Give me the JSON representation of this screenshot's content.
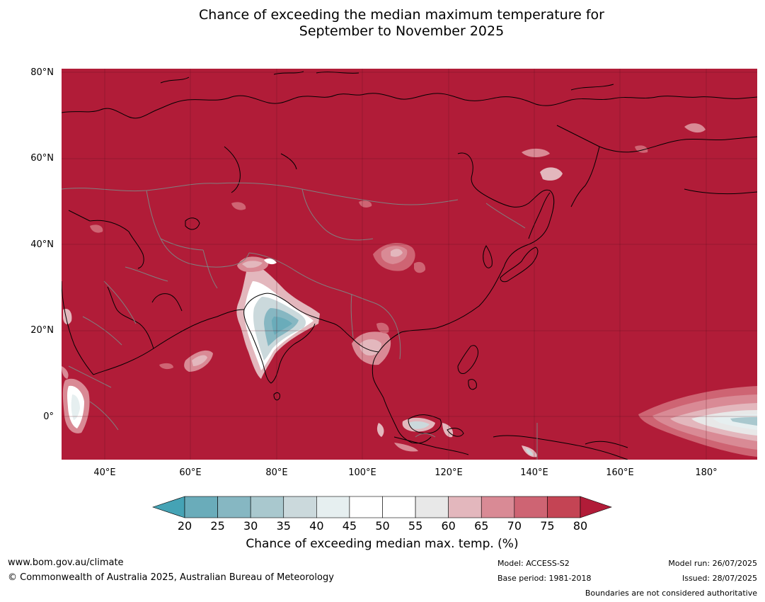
{
  "title": {
    "line1": "Chance of exceeding the median maximum temperature for",
    "line2": "September to November 2025"
  },
  "axes": {
    "lat_labels": [
      "80°N",
      "60°N",
      "40°N",
      "20°N",
      "0°"
    ],
    "lon_labels": [
      "40°E",
      "60°E",
      "80°E",
      "100°E",
      "120°E",
      "140°E",
      "160°E",
      "180°"
    ]
  },
  "colors": {
    "above": "#b11c38",
    "c75": "#c44454",
    "c70": "#ce6473",
    "c65": "#d98a95",
    "c60": "#e3b7bd",
    "c55": "#e8e8e8",
    "white": "#ffffff",
    "c40": "#e6eff0",
    "c35": "#cbd9dc",
    "c30": "#a9c8ce",
    "c25": "#86b7c2",
    "c20": "#6aacba",
    "below": "#45a3b5",
    "grid": "#5a1020",
    "border": "#808080",
    "coast": "#000000"
  },
  "colorbar": {
    "ticks": [
      "20",
      "25",
      "30",
      "35",
      "40",
      "45",
      "50",
      "55",
      "60",
      "65",
      "70",
      "75",
      "80"
    ],
    "label": "Chance of exceeding median max. temp. (%)"
  },
  "footer": {
    "url": "www.bom.gov.au/climate",
    "copyright": "© Commonwealth of Australia 2025, Australian Bureau of Meteorology",
    "model": "Model: ACCESS-S2",
    "base_period": "Base period: 1981-2018",
    "model_run": "Model run: 26/07/2025",
    "issued": "Issued: 28/07/2025",
    "disclaimer": "Boundaries are not considered authoritative"
  }
}
